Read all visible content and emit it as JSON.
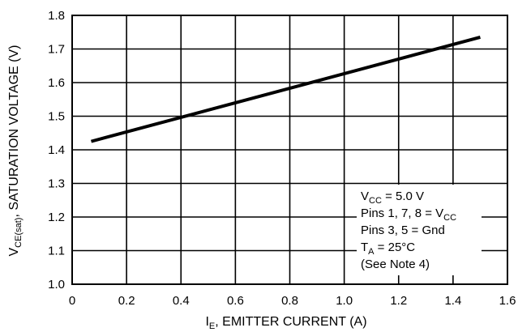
{
  "chart_data": {
    "type": "line",
    "title": "",
    "xlabel": {
      "main": "I",
      "sub": "E",
      "rest": ", EMITTER CURRENT (A)"
    },
    "ylabel": {
      "main": "V",
      "sub": "CE(sat)",
      "rest": ", SATURATION VOLTAGE (V)"
    },
    "xlim": [
      0,
      1.6
    ],
    "ylim": [
      1.0,
      1.8
    ],
    "x_ticks": [
      "0",
      "0.2",
      "0.4",
      "0.6",
      "0.8",
      "1.0",
      "1.2",
      "1.4",
      "1.6"
    ],
    "y_ticks": [
      "1.0",
      "1.1",
      "1.2",
      "1.3",
      "1.4",
      "1.5",
      "1.6",
      "1.7",
      "1.8"
    ],
    "grid": true,
    "series": [
      {
        "x": [
          0.07,
          1.5
        ],
        "y": [
          1.425,
          1.735
        ]
      }
    ],
    "annotation": [
      {
        "main": "V",
        "sub": "CC",
        "rest": " = 5.0 V"
      },
      {
        "main": "Pins 1, 7, 8 = V",
        "sub": "CC",
        "rest": ""
      },
      {
        "main": "Pins 3, 5 = Gnd",
        "sub": "",
        "rest": ""
      },
      {
        "main": "T",
        "sub": "A",
        "rest": " = 25°C"
      },
      {
        "main": "(See Note 4)",
        "sub": "",
        "rest": ""
      }
    ]
  }
}
